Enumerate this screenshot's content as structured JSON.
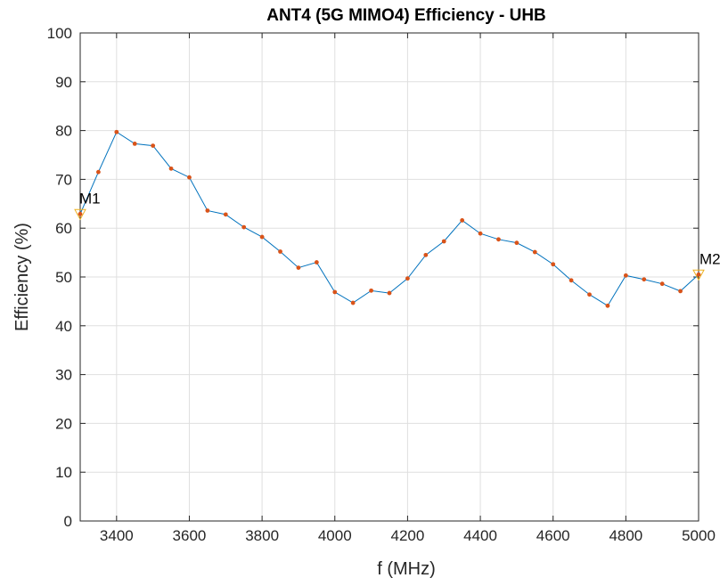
{
  "chart_data": {
    "type": "line",
    "title": "ANT4 (5G MIMO4) Efficiency - UHB",
    "xlabel": "f (MHz)",
    "ylabel": "Efficiency (%)",
    "xlim": [
      3300,
      5000
    ],
    "ylim": [
      0,
      100
    ],
    "xticks": [
      3400,
      3600,
      3800,
      4000,
      4200,
      4400,
      4600,
      4800,
      5000
    ],
    "yticks": [
      0,
      10,
      20,
      30,
      40,
      50,
      60,
      70,
      80,
      90,
      100
    ],
    "grid": true,
    "colors": {
      "line": "#0072BD",
      "points": "#D95319",
      "markers": "#EDB120"
    },
    "series": [
      {
        "x": [
          3300,
          3350,
          3400,
          3450,
          3500,
          3550,
          3600,
          3650,
          3700,
          3750,
          3800,
          3850,
          3900,
          3950,
          4000,
          4050,
          4100,
          4150,
          4200,
          4250,
          4300,
          4350,
          4400,
          4450,
          4500,
          4550,
          4600,
          4650,
          4700,
          4750,
          4800,
          4850,
          4900,
          4950,
          5000
        ],
        "values": [
          62.9,
          71.5,
          79.7,
          77.3,
          76.9,
          72.2,
          70.4,
          63.6,
          62.8,
          60.2,
          58.2,
          55.2,
          51.9,
          53.0,
          46.9,
          44.7,
          47.2,
          46.7,
          49.7,
          54.5,
          57.3,
          61.6,
          58.9,
          57.7,
          57.0,
          55.1,
          52.6,
          49.3,
          46.4,
          44.1,
          50.3,
          49.5,
          48.6,
          47.1,
          50.5
        ]
      }
    ],
    "annotations": [
      {
        "label": "M1",
        "x": 3300,
        "y": 62.9
      },
      {
        "label": "M2",
        "x": 5000,
        "y": 50.5
      }
    ]
  }
}
